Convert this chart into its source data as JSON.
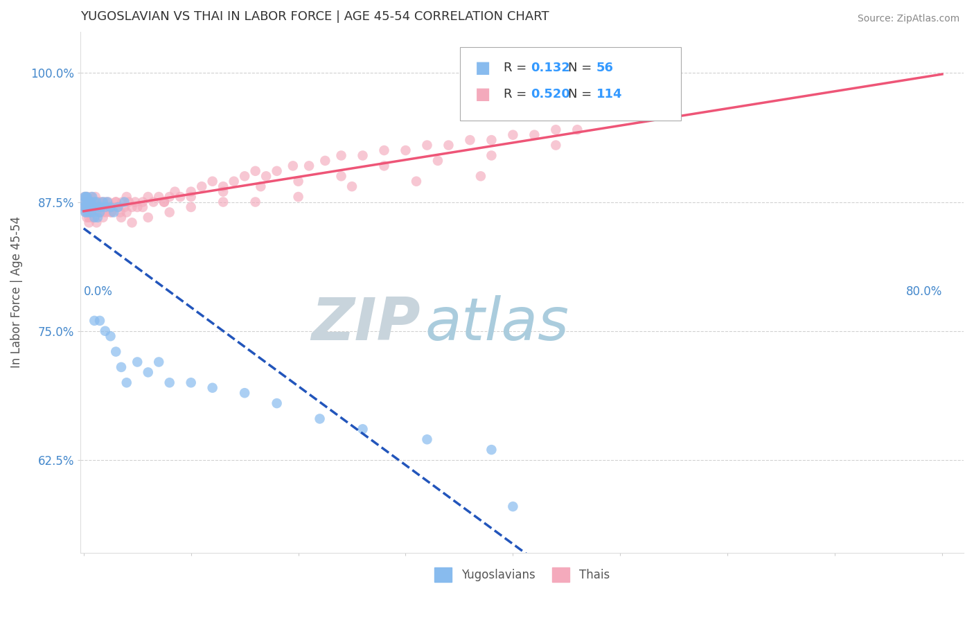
{
  "title": "YUGOSLAVIAN VS THAI IN LABOR FORCE | AGE 45-54 CORRELATION CHART",
  "source": "Source: ZipAtlas.com",
  "ylabel": "In Labor Force | Age 45-54",
  "xlim": [
    -0.003,
    0.82
  ],
  "ylim": [
    0.535,
    1.04
  ],
  "xtick_left": "0.0%",
  "xtick_right": "80.0%",
  "yticks": [
    0.625,
    0.75,
    0.875,
    1.0
  ],
  "yticklabels": [
    "62.5%",
    "75.0%",
    "87.5%",
    "100.0%"
  ],
  "legend_labels": [
    "Yugoslavians",
    "Thais"
  ],
  "R_yugo": 0.132,
  "N_yugo": 56,
  "R_thai": 0.52,
  "N_thai": 114,
  "color_yugo": "#88bbee",
  "color_thai": "#f4aabc",
  "trend_color_yugo": "#2255bb",
  "trend_color_thai": "#ee5577",
  "R_color": "#3399ff",
  "N_color": "#3399ff",
  "watermark_ZIP": "ZIP",
  "watermark_atlas": "atlas",
  "watermark_color_ZIP": "#c8d4dc",
  "watermark_color_atlas": "#aaccdd",
  "background_color": "#ffffff",
  "grid_color": "#cccccc",
  "title_color": "#333333",
  "title_fontsize": 13,
  "yugo_x": [
    0.0005,
    0.001,
    0.001,
    0.0015,
    0.002,
    0.002,
    0.0025,
    0.003,
    0.003,
    0.003,
    0.004,
    0.004,
    0.005,
    0.005,
    0.006,
    0.006,
    0.007,
    0.007,
    0.008,
    0.008,
    0.009,
    0.01,
    0.01,
    0.011,
    0.012,
    0.013,
    0.014,
    0.015,
    0.016,
    0.018,
    0.02,
    0.022,
    0.025,
    0.028,
    0.032,
    0.038,
    0.01,
    0.015,
    0.02,
    0.025,
    0.03,
    0.035,
    0.04,
    0.05,
    0.06,
    0.07,
    0.08,
    0.1,
    0.12,
    0.15,
    0.18,
    0.22,
    0.26,
    0.32,
    0.38,
    0.4
  ],
  "yugo_y": [
    0.87,
    0.875,
    0.88,
    0.865,
    0.87,
    0.88,
    0.875,
    0.87,
    0.865,
    0.88,
    0.875,
    0.87,
    0.875,
    0.865,
    0.875,
    0.87,
    0.875,
    0.865,
    0.87,
    0.88,
    0.87,
    0.875,
    0.86,
    0.87,
    0.875,
    0.86,
    0.87,
    0.865,
    0.87,
    0.875,
    0.87,
    0.875,
    0.87,
    0.865,
    0.87,
    0.875,
    0.76,
    0.76,
    0.75,
    0.745,
    0.73,
    0.715,
    0.7,
    0.72,
    0.71,
    0.72,
    0.7,
    0.7,
    0.695,
    0.69,
    0.68,
    0.665,
    0.655,
    0.645,
    0.635,
    0.58
  ],
  "thai_x": [
    0.001,
    0.001,
    0.002,
    0.002,
    0.003,
    0.003,
    0.004,
    0.004,
    0.005,
    0.005,
    0.006,
    0.006,
    0.007,
    0.007,
    0.008,
    0.008,
    0.009,
    0.01,
    0.01,
    0.011,
    0.011,
    0.012,
    0.012,
    0.013,
    0.014,
    0.015,
    0.015,
    0.016,
    0.017,
    0.018,
    0.019,
    0.02,
    0.021,
    0.022,
    0.023,
    0.025,
    0.026,
    0.028,
    0.03,
    0.032,
    0.034,
    0.036,
    0.038,
    0.04,
    0.042,
    0.045,
    0.048,
    0.05,
    0.055,
    0.06,
    0.065,
    0.07,
    0.075,
    0.08,
    0.085,
    0.09,
    0.1,
    0.11,
    0.12,
    0.13,
    0.14,
    0.15,
    0.16,
    0.17,
    0.18,
    0.195,
    0.21,
    0.225,
    0.24,
    0.26,
    0.28,
    0.3,
    0.32,
    0.34,
    0.36,
    0.38,
    0.4,
    0.42,
    0.44,
    0.46,
    0.003,
    0.005,
    0.008,
    0.012,
    0.018,
    0.025,
    0.035,
    0.045,
    0.06,
    0.08,
    0.1,
    0.13,
    0.16,
    0.2,
    0.25,
    0.31,
    0.37,
    0.006,
    0.01,
    0.015,
    0.022,
    0.03,
    0.04,
    0.055,
    0.075,
    0.1,
    0.13,
    0.165,
    0.2,
    0.24,
    0.28,
    0.33,
    0.38,
    0.44
  ],
  "thai_y": [
    0.87,
    0.88,
    0.865,
    0.875,
    0.87,
    0.88,
    0.865,
    0.875,
    0.87,
    0.86,
    0.875,
    0.865,
    0.87,
    0.88,
    0.865,
    0.875,
    0.87,
    0.875,
    0.865,
    0.87,
    0.88,
    0.875,
    0.87,
    0.865,
    0.87,
    0.875,
    0.865,
    0.87,
    0.875,
    0.865,
    0.87,
    0.875,
    0.865,
    0.87,
    0.875,
    0.87,
    0.865,
    0.87,
    0.875,
    0.87,
    0.865,
    0.875,
    0.87,
    0.88,
    0.875,
    0.87,
    0.875,
    0.87,
    0.875,
    0.88,
    0.875,
    0.88,
    0.875,
    0.88,
    0.885,
    0.88,
    0.885,
    0.89,
    0.895,
    0.89,
    0.895,
    0.9,
    0.905,
    0.9,
    0.905,
    0.91,
    0.91,
    0.915,
    0.92,
    0.92,
    0.925,
    0.925,
    0.93,
    0.93,
    0.935,
    0.935,
    0.94,
    0.94,
    0.945,
    0.945,
    0.86,
    0.855,
    0.86,
    0.855,
    0.86,
    0.865,
    0.86,
    0.855,
    0.86,
    0.865,
    0.87,
    0.875,
    0.875,
    0.88,
    0.89,
    0.895,
    0.9,
    0.865,
    0.87,
    0.865,
    0.87,
    0.875,
    0.865,
    0.87,
    0.875,
    0.88,
    0.885,
    0.89,
    0.895,
    0.9,
    0.91,
    0.915,
    0.92,
    0.93
  ]
}
